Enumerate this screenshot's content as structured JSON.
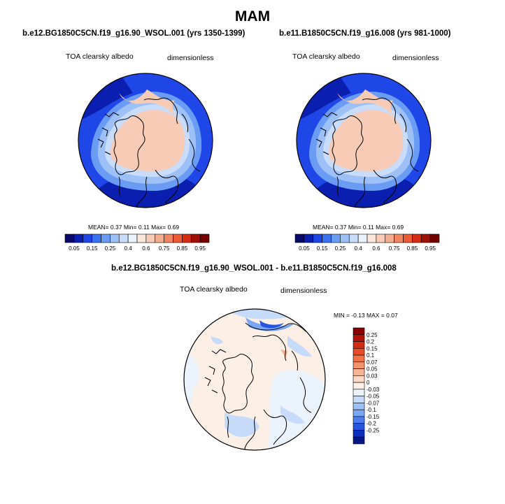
{
  "title": "MAM",
  "panels": [
    {
      "case": "b.e12.BG1850C5CN.f19_g16.90_WSOL.001 (yrs 1350-1399)",
      "variable": "TOA clearsky albedo",
      "units": "dimensionless",
      "stats": {
        "mean_label": "MEAN=",
        "mean": "0.37",
        "min_label": "Min=",
        "min": "0.11",
        "max_label": "Max=",
        "max": "0.69"
      }
    },
    {
      "case": "b.e11.B1850C5CN.f19_g16.008 (yrs 981-1000)",
      "variable": "TOA clearsky albedo",
      "units": "dimensionless",
      "stats": {
        "mean_label": "MEAN=",
        "mean": "0.37",
        "min_label": "Min=",
        "min": "0.11",
        "max_label": "Max=",
        "max": "0.69"
      }
    }
  ],
  "colorbar": {
    "labels": [
      "0.05",
      "0.15",
      "0.25",
      "0.4",
      "0.6",
      "0.75",
      "0.85",
      "0.95"
    ],
    "colors": [
      "#08086b",
      "#0a1fb0",
      "#1f46e6",
      "#3a72f2",
      "#6a9cf4",
      "#9dc0f7",
      "#c9dcfa",
      "#eaf2fc",
      "#fbe6dc",
      "#f7cbb6",
      "#f4ad8e",
      "#f08762",
      "#eb5a34",
      "#d52d13",
      "#a11007",
      "#720000"
    ]
  },
  "diff_panel": {
    "title": "b.e12.BG1850C5CN.f19_g16.90_WSOL.001 - b.e11.B1850C5CN.f19_g16.008",
    "variable": "TOA clearsky albedo",
    "units": "dimensionless",
    "minmax": {
      "min_label": "MIN =",
      "min": "-0.13",
      "max_label": "MAX =",
      "max": "0.07"
    },
    "colorbar": {
      "labels": [
        "0.25",
        "0.2",
        "0.15",
        "0.1",
        "0.07",
        "0.05",
        "0.03",
        "0",
        "-0.03",
        "-0.05",
        "-0.07",
        "-0.1",
        "-0.15",
        "-0.2",
        "-0.25"
      ],
      "colors": [
        "#8a0000",
        "#b01408",
        "#d32b12",
        "#e84d2a",
        "#f07348",
        "#f4946c",
        "#f7b597",
        "#fbd7c6",
        "#fbefe6",
        "#eaf2fc",
        "#c6dbfa",
        "#9dc0f6",
        "#7aa6f2",
        "#4c7eed",
        "#2656e0",
        "#0c2fbe",
        "#061785"
      ]
    }
  }
}
